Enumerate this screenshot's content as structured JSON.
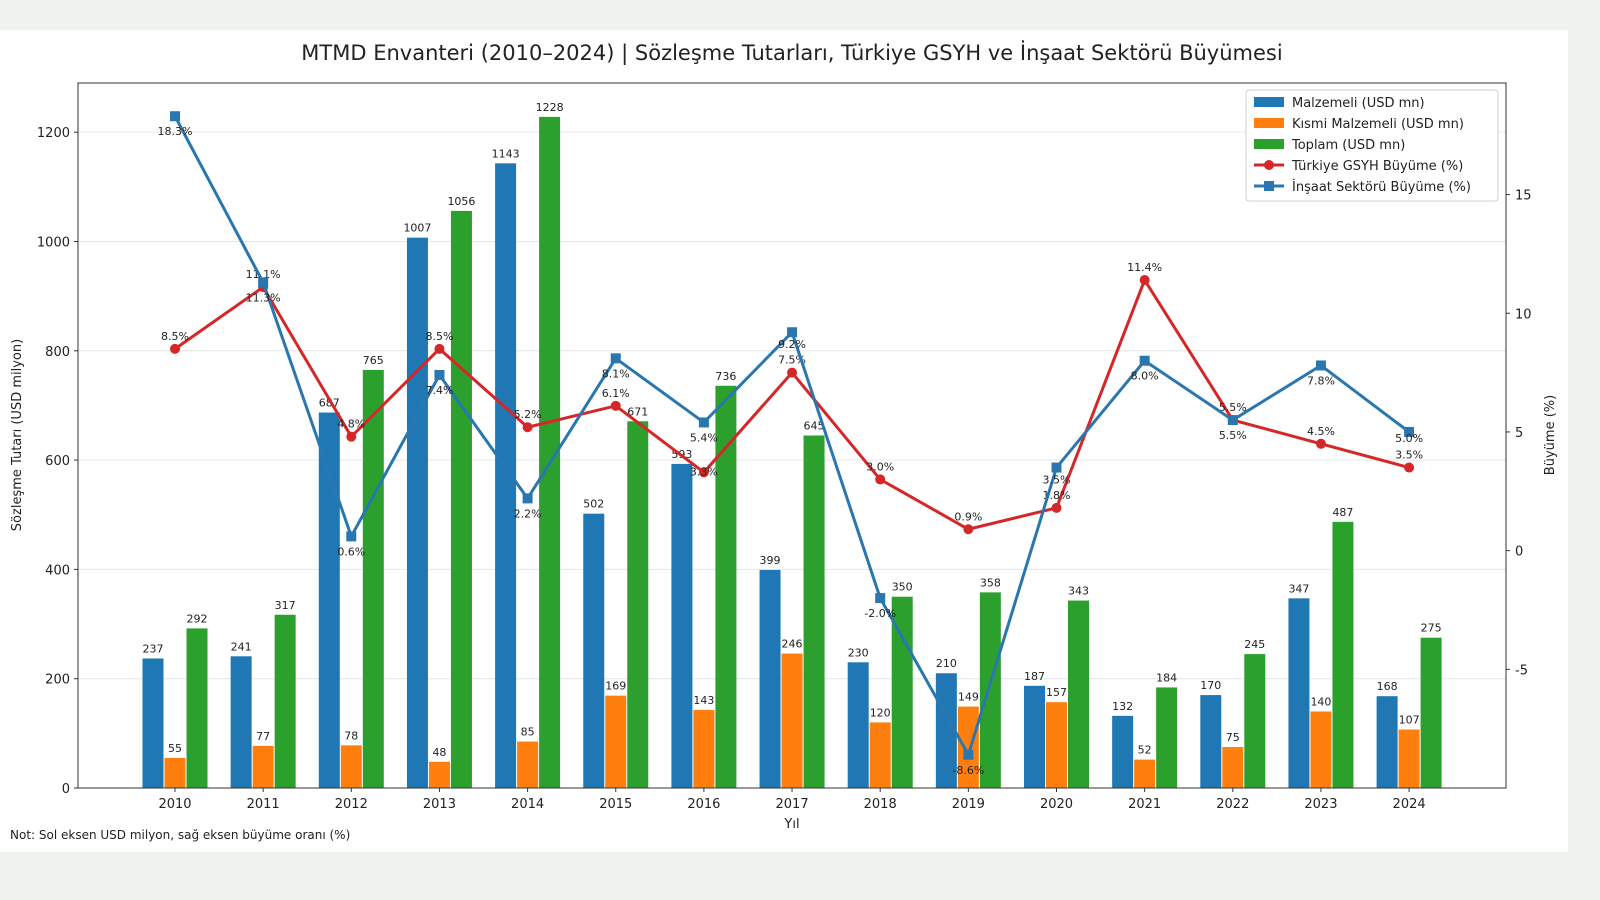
{
  "chart_data": {
    "type": "bar+line",
    "title": "MTMD Envanteri (2010–2024) | Sözleşme Tutarları, Türkiye GSYH ve İnşaat Sektörü Büyümesi",
    "xlabel": "Yıl",
    "ylabel": "Sözleşme Tutarı (USD milyon)",
    "y2label": "Büyüme (%)",
    "ylim": [
      0,
      1290
    ],
    "y2lim": [
      -10,
      19.7
    ],
    "yticks": [
      0,
      200,
      400,
      600,
      800,
      1000,
      1200
    ],
    "y2ticks": [
      -5,
      0,
      5,
      10,
      15
    ],
    "grid": true,
    "legend_position": "top-right",
    "categories": [
      "2010",
      "2011",
      "2012",
      "2013",
      "2014",
      "2015",
      "2016",
      "2017",
      "2018",
      "2019",
      "2020",
      "2021",
      "2022",
      "2023",
      "2024"
    ],
    "bar_series": [
      {
        "name": "Malzemeli (USD mn)",
        "color": "#1f77b4",
        "values": [
          237,
          241,
          687,
          1007,
          1143,
          502,
          593,
          399,
          230,
          210,
          187,
          132,
          170,
          347,
          168
        ]
      },
      {
        "name": "Kısmi Malzemeli (USD mn)",
        "color": "#ff7f0e",
        "values": [
          55,
          77,
          78,
          48,
          85,
          169,
          143,
          246,
          120,
          149,
          157,
          52,
          75,
          140,
          107
        ]
      },
      {
        "name": "Toplam (USD mn)",
        "color": "#2ca02c",
        "values": [
          292,
          317,
          765,
          1056,
          1228,
          671,
          736,
          645,
          350,
          358,
          343,
          184,
          245,
          487,
          275
        ]
      }
    ],
    "line_series": [
      {
        "name": "Türkiye GSYH Büyüme (%)",
        "color": "#d62728",
        "marker": "circle",
        "values": [
          8.5,
          11.1,
          4.8,
          8.5,
          5.2,
          6.1,
          3.3,
          7.5,
          3.0,
          0.9,
          1.8,
          11.4,
          5.5,
          4.5,
          3.5
        ]
      },
      {
        "name": "İnşaat Sektörü Büyüme (%)",
        "color": "#2a77b0",
        "marker": "square",
        "values": [
          18.3,
          11.3,
          0.6,
          7.4,
          2.2,
          8.1,
          5.4,
          9.2,
          -2.0,
          -8.6,
          3.5,
          8.0,
          5.5,
          7.8,
          5.0
        ]
      }
    ],
    "note": "Not: Sol eksen USD milyon, sağ eksen büyüme oranı (%)"
  }
}
